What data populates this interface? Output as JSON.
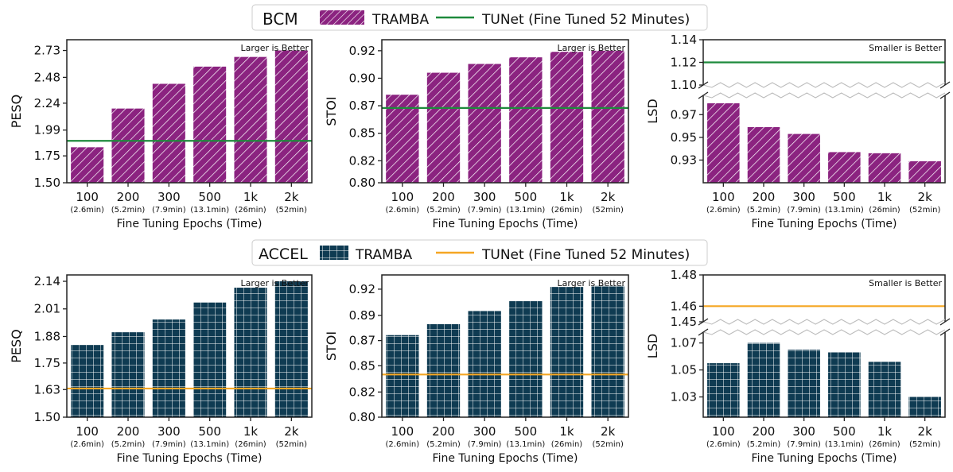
{
  "colors": {
    "bcm_bar": "#8B2380",
    "accel_bar": "#0F3B52",
    "bcm_line": "#1E8A3C",
    "accel_line": "#F5A623",
    "axis": "#222222"
  },
  "legends": [
    {
      "group": "BCM",
      "bar_label": "TRAMBA",
      "line_label": "TUNet (Fine Tuned 52 Minutes)"
    },
    {
      "group": "ACCEL",
      "bar_label": "TRAMBA",
      "line_label": "TUNet (Fine Tuned 52 Minutes)"
    }
  ],
  "chart_data": [
    {
      "type": "bar",
      "group": "BCM",
      "categories": [
        "100",
        "200",
        "300",
        "500",
        "1k",
        "2k"
      ],
      "sublabels": [
        "(2.6min)",
        "(5.2min)",
        "(7.9min)",
        "(13.1min)",
        "(26min)",
        "(52min)"
      ],
      "xlabel": "Fine Tuning Epochs (Time)",
      "ylabel": "PESQ",
      "annotation": "Larger is Better",
      "series": [
        {
          "name": "TRAMBA",
          "values": [
            1.83,
            2.19,
            2.42,
            2.58,
            2.67,
            2.73
          ]
        }
      ],
      "reference_line": {
        "name": "TUNet (Fine Tuned 52 Minutes)",
        "value": 1.89
      },
      "ylim": [
        1.5,
        2.83
      ],
      "yticks": [
        "1.50",
        "1.75",
        "1.99",
        "2.24",
        "2.48",
        "2.73"
      ],
      "ytick_values": [
        1.5,
        1.75,
        1.99,
        2.24,
        2.48,
        2.73
      ]
    },
    {
      "type": "bar",
      "group": "BCM",
      "categories": [
        "100",
        "200",
        "300",
        "500",
        "1k",
        "2k"
      ],
      "sublabels": [
        "(2.6min)",
        "(5.2min)",
        "(7.9min)",
        "(13.1min)",
        "(26min)",
        "(52min)"
      ],
      "xlabel": "Fine Tuning Epochs (Time)",
      "ylabel": "STOI",
      "annotation": "Larger is Better",
      "series": [
        {
          "name": "TRAMBA",
          "values": [
            0.88,
            0.9,
            0.908,
            0.914,
            0.919,
            0.92
          ]
        }
      ],
      "reference_line": {
        "name": "TUNet (Fine Tuned 52 Minutes)",
        "value": 0.868
      },
      "ylim": [
        0.8,
        0.93
      ],
      "yticks": [
        "0.80",
        "0.82",
        "0.85",
        "0.87",
        "0.90",
        "0.92"
      ],
      "ytick_values": [
        0.8,
        0.82,
        0.845,
        0.87,
        0.895,
        0.92
      ]
    },
    {
      "type": "bar",
      "group": "BCM",
      "broken_axis": true,
      "categories": [
        "100",
        "200",
        "300",
        "500",
        "1k",
        "2k"
      ],
      "sublabels": [
        "(2.6min)",
        "(5.2min)",
        "(7.9min)",
        "(13.1min)",
        "(26min)",
        "(52min)"
      ],
      "xlabel": "Fine Tuning Epochs (Time)",
      "ylabel": "LSD",
      "annotation": "Smaller is Better",
      "series": [
        {
          "name": "TRAMBA",
          "values": [
            0.98,
            0.959,
            0.953,
            0.937,
            0.936,
            0.929
          ]
        }
      ],
      "reference_line": {
        "name": "TUNet (Fine Tuned 52 Minutes)",
        "value": 1.12
      },
      "ylim_upper": [
        1.1,
        1.14
      ],
      "yticks_upper": [
        "1.10",
        "1.12",
        "1.14"
      ],
      "ytick_values_upper": [
        1.1,
        1.12,
        1.14
      ],
      "ylim_lower": [
        0.91,
        0.987
      ],
      "yticks_lower": [
        "0.93",
        "0.95",
        "0.97"
      ],
      "ytick_values_lower": [
        0.93,
        0.95,
        0.97
      ]
    },
    {
      "type": "bar",
      "group": "ACCEL",
      "categories": [
        "100",
        "200",
        "300",
        "500",
        "1k",
        "2k"
      ],
      "sublabels": [
        "(2.6min)",
        "(5.2min)",
        "(7.9min)",
        "(13.1min)",
        "(26min)",
        "(52min)"
      ],
      "xlabel": "Fine Tuning Epochs (Time)",
      "ylabel": "PESQ",
      "annotation": "Larger is Better",
      "series": [
        {
          "name": "TRAMBA",
          "values": [
            1.84,
            1.9,
            1.96,
            2.04,
            2.11,
            2.14
          ]
        }
      ],
      "reference_line": {
        "name": "TUNet (Fine Tuned 52 Minutes)",
        "value": 1.635
      },
      "ylim": [
        1.5,
        2.17
      ],
      "yticks": [
        "1.50",
        "1.63",
        "1.75",
        "1.88",
        "2.01",
        "2.14"
      ],
      "ytick_values": [
        1.5,
        1.63,
        1.755,
        1.88,
        2.01,
        2.14
      ]
    },
    {
      "type": "bar",
      "group": "ACCEL",
      "categories": [
        "100",
        "200",
        "300",
        "500",
        "1k",
        "2k"
      ],
      "sublabels": [
        "(2.6min)",
        "(5.2min)",
        "(7.9min)",
        "(13.1min)",
        "(26min)",
        "(52min)"
      ],
      "xlabel": "Fine Tuning Epochs (Time)",
      "ylabel": "STOI",
      "annotation": "Larger is Better",
      "series": [
        {
          "name": "TRAMBA",
          "values": [
            0.875,
            0.885,
            0.897,
            0.906,
            0.919,
            0.92
          ]
        }
      ],
      "reference_line": {
        "name": "TUNet (Fine Tuned 52 Minutes)",
        "value": 0.839
      },
      "ylim": [
        0.8,
        0.93
      ],
      "yticks": [
        "0.80",
        "0.82",
        "0.85",
        "0.87",
        "0.89",
        "0.92"
      ],
      "ytick_values": [
        0.8,
        0.823,
        0.847,
        0.87,
        0.893,
        0.917
      ]
    },
    {
      "type": "bar",
      "group": "ACCEL",
      "broken_axis": true,
      "categories": [
        "100",
        "200",
        "300",
        "500",
        "1k",
        "2k"
      ],
      "sublabels": [
        "(2.6min)",
        "(5.2min)",
        "(7.9min)",
        "(13.1min)",
        "(26min)",
        "(52min)"
      ],
      "xlabel": "Fine Tuning Epochs (Time)",
      "ylabel": "LSD",
      "annotation": "Smaller is Better",
      "series": [
        {
          "name": "TRAMBA",
          "values": [
            1.055,
            1.07,
            1.065,
            1.063,
            1.056,
            1.03
          ]
        }
      ],
      "reference_line": {
        "name": "TUNet (Fine Tuned 52 Minutes)",
        "value": 1.46
      },
      "ylim_upper": [
        1.45,
        1.48
      ],
      "yticks_upper": [
        "1.45",
        "1.46",
        "1.48"
      ],
      "ytick_values_upper": [
        1.45,
        1.46,
        1.48
      ],
      "ylim_lower": [
        1.015,
        1.078
      ],
      "yticks_lower": [
        "1.03",
        "1.05",
        "1.07"
      ],
      "ytick_values_lower": [
        1.03,
        1.05,
        1.07
      ]
    }
  ]
}
